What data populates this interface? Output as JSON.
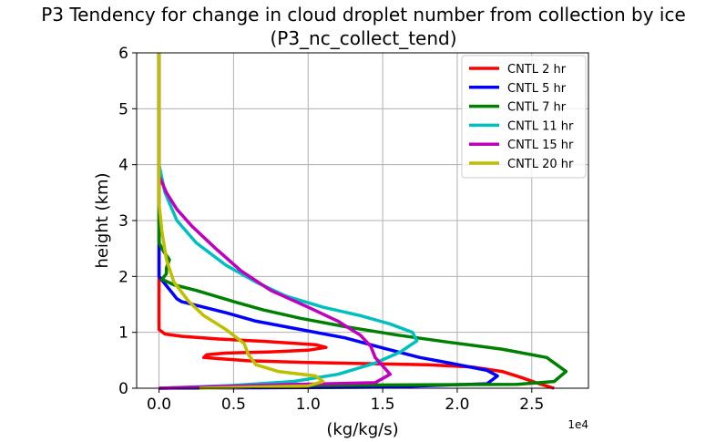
{
  "chart_data": {
    "type": "line",
    "title_line1": "P3 Tendency for change in cloud droplet number from collection by ice",
    "title_line2": "(P3_nc_collect_tend)",
    "xlabel": "(kg/kg/s)",
    "ylabel": "height (km)",
    "x_offset_label": "1e4",
    "xlim": [
      -0.15,
      2.88
    ],
    "ylim": [
      0,
      6
    ],
    "x_ticks": [
      0.0,
      0.5,
      1.0,
      1.5,
      2.0,
      2.5
    ],
    "x_tick_labels": [
      "0.0",
      "0.5",
      "1.0",
      "1.5",
      "2.0",
      "2.5"
    ],
    "y_ticks": [
      0,
      1,
      2,
      3,
      4,
      5,
      6
    ],
    "y_tick_labels": [
      "0",
      "1",
      "2",
      "3",
      "4",
      "5",
      "6"
    ],
    "grid": true,
    "legend_position": "upper-right",
    "series": [
      {
        "name": "CNTL 2 hr",
        "color": "#ff0000",
        "points": [
          [
            2.65,
            0.0
          ],
          [
            2.55,
            0.08
          ],
          [
            2.42,
            0.2
          ],
          [
            2.3,
            0.3
          ],
          [
            2.1,
            0.38
          ],
          [
            1.8,
            0.42
          ],
          [
            1.4,
            0.44
          ],
          [
            1.0,
            0.46
          ],
          [
            0.6,
            0.49
          ],
          [
            0.3,
            0.55
          ],
          [
            0.32,
            0.6
          ],
          [
            0.45,
            0.63
          ],
          [
            0.75,
            0.65
          ],
          [
            1.0,
            0.68
          ],
          [
            1.12,
            0.73
          ],
          [
            1.05,
            0.78
          ],
          [
            0.7,
            0.84
          ],
          [
            0.4,
            0.88
          ],
          [
            0.15,
            0.93
          ],
          [
            0.04,
            0.97
          ],
          [
            0.0,
            1.05
          ],
          [
            0.0,
            1.5
          ],
          [
            0.0,
            2.0
          ],
          [
            0.0,
            3.0
          ],
          [
            0.0,
            4.0
          ],
          [
            0.0,
            5.0
          ],
          [
            0.0,
            6.0
          ]
        ]
      },
      {
        "name": "CNTL 5 hr",
        "color": "#0000ff",
        "points": [
          [
            0.0,
            0.0
          ],
          [
            1.5,
            0.02
          ],
          [
            2.2,
            0.08
          ],
          [
            2.27,
            0.22
          ],
          [
            2.2,
            0.32
          ],
          [
            1.95,
            0.45
          ],
          [
            1.75,
            0.55
          ],
          [
            1.5,
            0.72
          ],
          [
            1.25,
            0.9
          ],
          [
            0.95,
            1.05
          ],
          [
            0.65,
            1.2
          ],
          [
            0.45,
            1.35
          ],
          [
            0.3,
            1.45
          ],
          [
            0.15,
            1.55
          ],
          [
            0.12,
            1.6
          ],
          [
            0.09,
            1.7
          ],
          [
            0.06,
            1.8
          ],
          [
            0.03,
            1.9
          ],
          [
            0.0,
            2.0
          ],
          [
            0.0,
            2.5
          ],
          [
            0.0,
            3.0
          ],
          [
            0.0,
            4.0
          ],
          [
            0.0,
            5.0
          ],
          [
            0.0,
            6.0
          ]
        ]
      },
      {
        "name": "CNTL 7 hr",
        "color": "#008000",
        "points": [
          [
            0.0,
            0.0
          ],
          [
            1.0,
            0.05
          ],
          [
            2.4,
            0.07
          ],
          [
            2.65,
            0.12
          ],
          [
            2.73,
            0.3
          ],
          [
            2.6,
            0.55
          ],
          [
            2.3,
            0.7
          ],
          [
            1.95,
            0.82
          ],
          [
            1.6,
            0.95
          ],
          [
            1.25,
            1.1
          ],
          [
            0.95,
            1.25
          ],
          [
            0.7,
            1.4
          ],
          [
            0.5,
            1.55
          ],
          [
            0.25,
            1.75
          ],
          [
            0.1,
            1.85
          ],
          [
            0.02,
            1.95
          ],
          [
            0.05,
            2.05
          ],
          [
            0.05,
            2.15
          ],
          [
            0.07,
            2.3
          ],
          [
            0.03,
            2.45
          ],
          [
            0.0,
            2.6
          ],
          [
            0.0,
            3.0
          ],
          [
            0.0,
            4.0
          ],
          [
            0.0,
            5.0
          ],
          [
            0.0,
            6.0
          ]
        ]
      },
      {
        "name": "CNTL 11 hr",
        "color": "#00bfbf",
        "points": [
          [
            0.0,
            0.0
          ],
          [
            0.5,
            0.05
          ],
          [
            0.9,
            0.12
          ],
          [
            1.2,
            0.25
          ],
          [
            1.45,
            0.45
          ],
          [
            1.62,
            0.65
          ],
          [
            1.73,
            0.85
          ],
          [
            1.7,
            1.0
          ],
          [
            1.55,
            1.15
          ],
          [
            1.35,
            1.3
          ],
          [
            1.1,
            1.45
          ],
          [
            0.85,
            1.65
          ],
          [
            0.65,
            1.9
          ],
          [
            0.45,
            2.2
          ],
          [
            0.25,
            2.6
          ],
          [
            0.12,
            3.0
          ],
          [
            0.04,
            3.5
          ],
          [
            0.0,
            4.0
          ],
          [
            0.0,
            5.0
          ],
          [
            0.0,
            6.0
          ]
        ]
      },
      {
        "name": "CNTL 15 hr",
        "color": "#bf00bf",
        "points": [
          [
            0.0,
            0.0
          ],
          [
            0.8,
            0.06
          ],
          [
            1.45,
            0.1
          ],
          [
            1.55,
            0.25
          ],
          [
            1.5,
            0.4
          ],
          [
            1.45,
            0.55
          ],
          [
            1.42,
            0.75
          ],
          [
            1.35,
            0.95
          ],
          [
            1.2,
            1.2
          ],
          [
            1.0,
            1.45
          ],
          [
            0.75,
            1.75
          ],
          [
            0.55,
            2.1
          ],
          [
            0.38,
            2.5
          ],
          [
            0.22,
            2.9
          ],
          [
            0.12,
            3.2
          ],
          [
            0.05,
            3.5
          ],
          [
            0.0,
            3.8
          ],
          [
            0.0,
            4.2
          ],
          [
            0.0,
            5.0
          ],
          [
            0.0,
            6.0
          ]
        ]
      },
      {
        "name": "CNTL 20 hr",
        "color": "#bfbf00",
        "points": [
          [
            0.27,
            0.0
          ],
          [
            1.0,
            0.04
          ],
          [
            1.1,
            0.12
          ],
          [
            1.05,
            0.22
          ],
          [
            0.8,
            0.3
          ],
          [
            0.65,
            0.42
          ],
          [
            0.6,
            0.6
          ],
          [
            0.57,
            0.8
          ],
          [
            0.45,
            1.05
          ],
          [
            0.3,
            1.3
          ],
          [
            0.2,
            1.55
          ],
          [
            0.1,
            1.9
          ],
          [
            0.05,
            2.3
          ],
          [
            0.02,
            2.8
          ],
          [
            0.0,
            3.3
          ],
          [
            0.0,
            3.8
          ],
          [
            0.0,
            4.3
          ],
          [
            0.0,
            5.0
          ],
          [
            0.0,
            6.0
          ]
        ]
      }
    ]
  }
}
